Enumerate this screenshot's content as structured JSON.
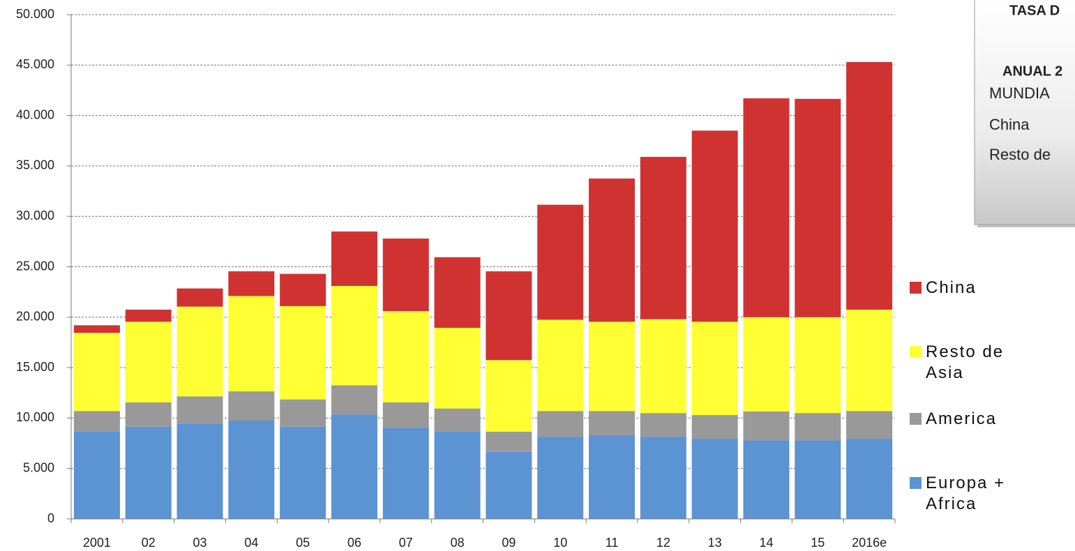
{
  "chart_data": {
    "type": "stacked-bar",
    "categories": [
      "2001",
      "02",
      "03",
      "04",
      "05",
      "06",
      "07",
      "08",
      "09",
      "10",
      "11",
      "12",
      "13",
      "14",
      "15",
      "2016e"
    ],
    "series": [
      {
        "name": "Europa + Africa",
        "color": "#5b93d3",
        "values": [
          8650,
          9150,
          9450,
          9750,
          9150,
          10350,
          9050,
          8650,
          6650,
          8150,
          8300,
          8150,
          7950,
          7800,
          7800,
          7950
        ]
      },
      {
        "name": "America",
        "color": "#999999",
        "values": [
          2050,
          2400,
          2700,
          2900,
          2700,
          2900,
          2500,
          2300,
          2000,
          2550,
          2400,
          2350,
          2350,
          2850,
          2700,
          2750
        ]
      },
      {
        "name": "Resto de Asia",
        "color": "#ffff33",
        "values": [
          7750,
          8000,
          8900,
          9450,
          9250,
          9850,
          9050,
          8000,
          7100,
          9050,
          8850,
          9300,
          9250,
          9350,
          9500,
          10050
        ]
      },
      {
        "name": "China",
        "color": "#d03232",
        "values": [
          750,
          1200,
          1800,
          2450,
          3200,
          5400,
          7200,
          7000,
          8800,
          11400,
          14200,
          16100,
          18950,
          21700,
          21650,
          24550
        ]
      }
    ],
    "ylim": [
      0,
      50000
    ],
    "yticks": [
      0,
      {
        "value": 5000,
        "label": "5.000"
      },
      {
        "value": 10000,
        "label": "10.000"
      },
      {
        "value": 15000,
        "label": "15.000"
      },
      {
        "value": 20000,
        "label": "20.000"
      },
      {
        "value": 25000,
        "label": "25.000"
      },
      {
        "value": 30000,
        "label": "30.000"
      },
      {
        "value": 35000,
        "label": "35.000"
      },
      {
        "value": 40000,
        "label": "40.000"
      },
      {
        "value": 45000,
        "label": "45.000"
      },
      {
        "value": 50000,
        "label": "50.000"
      }
    ],
    "grid": true,
    "legend": "right",
    "annotations": [
      "TASA D",
      "ANUAL 2",
      "MUNDIA",
      "China",
      "Resto de"
    ]
  }
}
